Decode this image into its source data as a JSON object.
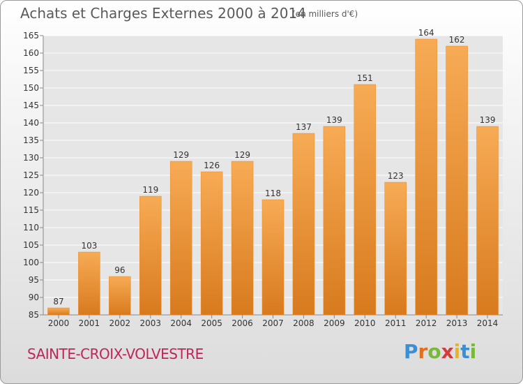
{
  "header": {
    "title": "Achats et Charges Externes 2000 à 2014",
    "subtitle": "(en milliers d'€)"
  },
  "footer": {
    "town": "SAINTE-CROIX-VOLVESTRE",
    "logo": {
      "letters": [
        "P",
        "r",
        "o",
        "x",
        "i",
        "t",
        "i"
      ],
      "colors": [
        "#3a8fd6",
        "#e07020",
        "#7ab83c",
        "#d33c3c",
        "#e7b520",
        "#3a8fd6",
        "#7ab83c"
      ]
    }
  },
  "colors": {
    "bar_light": "#f7ab55",
    "bar_dark": "#d87a1e",
    "bar_edge": "#e88a2c",
    "text": "#333333",
    "grid": "#ffffff"
  },
  "chart_data": {
    "type": "bar",
    "categories": [
      "2000",
      "2001",
      "2002",
      "2003",
      "2004",
      "2005",
      "2006",
      "2007",
      "2008",
      "2009",
      "2010",
      "2011",
      "2012",
      "2013",
      "2014"
    ],
    "values": [
      87,
      103,
      96,
      119,
      129,
      126,
      129,
      118,
      137,
      139,
      151,
      123,
      164,
      162,
      139
    ],
    "title": "Achats et Charges Externes 2000 à 2014",
    "subtitle": "(en milliers d'€)",
    "xlabel": "",
    "ylabel": "",
    "ylim": [
      85,
      165
    ],
    "yticks": [
      85,
      90,
      95,
      100,
      105,
      110,
      115,
      120,
      125,
      130,
      135,
      140,
      145,
      150,
      155,
      160,
      165
    ],
    "grid": true,
    "data_labels": true
  }
}
